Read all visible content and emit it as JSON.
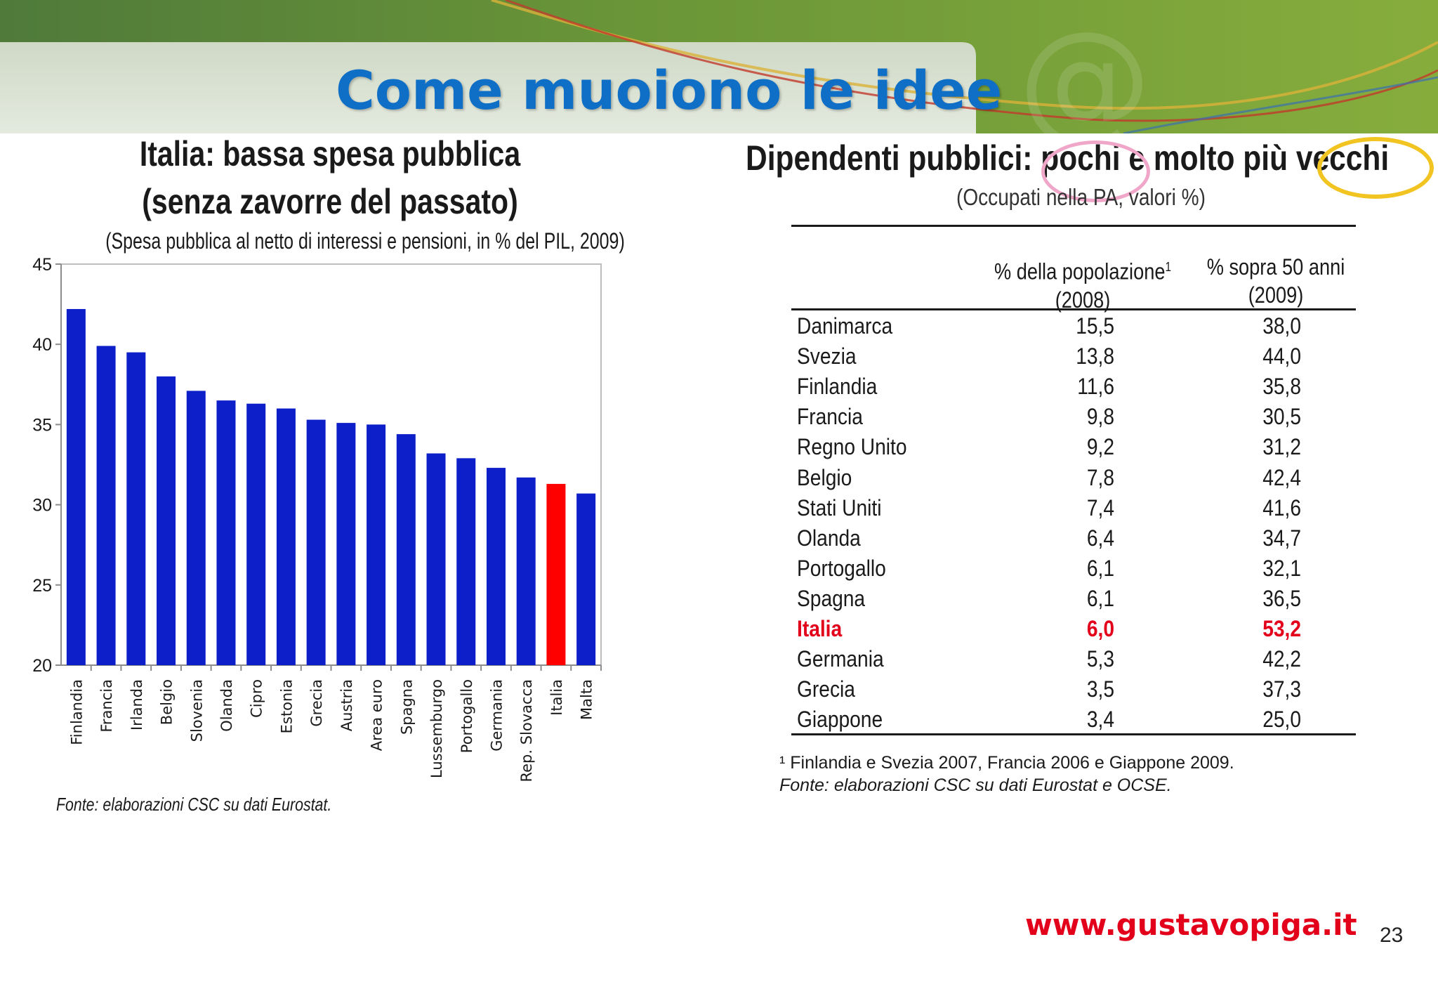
{
  "slide": {
    "title": "Come muoiono le idee",
    "website": "www.gustavopiga.it",
    "page_number": "23"
  },
  "chart": {
    "title_line1": "Italia: bassa spesa pubblica",
    "title_line2": "(senza zavorre del passato)",
    "subtitle": "(Spesa pubblica al netto di interessi e pensioni, in % del PIL, 2009)",
    "source": "Fonte: elaborazioni CSC su dati Eurostat."
  },
  "chart_data": {
    "type": "bar",
    "title": "Italia: bassa spesa pubblica (senza zavorre del passato)",
    "subtitle": "(Spesa pubblica al netto di interessi e pensioni, in % del PIL, 2009)",
    "categories": [
      "Finlandia",
      "Francia",
      "Irlanda",
      "Belgio",
      "Slovenia",
      "Olanda",
      "Cipro",
      "Estonia",
      "Grecia",
      "Austria",
      "Area euro",
      "Spagna",
      "Lussemburgo",
      "Portogallo",
      "Germania",
      "Rep. Slovacca",
      "Italia",
      "Malta"
    ],
    "values": [
      42.2,
      39.9,
      39.5,
      38.0,
      37.1,
      36.5,
      36.3,
      36.0,
      35.3,
      35.1,
      35.0,
      34.4,
      33.2,
      32.9,
      32.3,
      31.7,
      31.3,
      30.7
    ],
    "ylim": [
      20,
      45
    ],
    "yticks": [
      "20",
      "25",
      "30",
      "35",
      "40",
      "45"
    ],
    "highlight_category": "Italia",
    "bar_color": "#0d1fc8",
    "highlight_color": "#ff0000",
    "grid": false,
    "xlabel": "",
    "ylabel": ""
  },
  "table": {
    "title": "Dipendenti pubblici: pochi e molto più vecchi",
    "subtitle": "(Occupati nella PA, valori %)",
    "columns": [
      {
        "line1": "% della popolazione",
        "sup": "1",
        "line2": "(2008)"
      },
      {
        "line1": "% sopra 50 anni",
        "sup": "",
        "line2": "(2009)"
      }
    ],
    "rows": [
      [
        "Danimarca",
        "15,5",
        "38,0"
      ],
      [
        "Svezia",
        "13,8",
        "44,0"
      ],
      [
        "Finlandia",
        "11,6",
        "35,8"
      ],
      [
        "Francia",
        "9,8",
        "30,5"
      ],
      [
        "Regno Unito",
        "9,2",
        "31,2"
      ],
      [
        "Belgio",
        "7,8",
        "42,4"
      ],
      [
        "Stati Uniti",
        "7,4",
        "41,6"
      ],
      [
        "Olanda",
        "6,4",
        "34,7"
      ],
      [
        "Portogallo",
        "6,1",
        "32,1"
      ],
      [
        "Spagna",
        "6,1",
        "36,5"
      ],
      [
        "Italia",
        "6,0",
        "53,2"
      ],
      [
        "Germania",
        "5,3",
        "42,2"
      ],
      [
        "Grecia",
        "3,5",
        "37,3"
      ],
      [
        "Giappone",
        "3,4",
        "25,0"
      ]
    ],
    "highlight_row": "Italia",
    "footnote": "¹ Finlandia e Svezia 2007, Francia 2006 e Giappone 2009.",
    "source": "Fonte: elaborazioni CSC su dati Eurostat e OCSE."
  },
  "colors": {
    "title_blue": "#0f6fc6",
    "accent_red": "#e3001b",
    "banner_green": "#6e9a36"
  }
}
